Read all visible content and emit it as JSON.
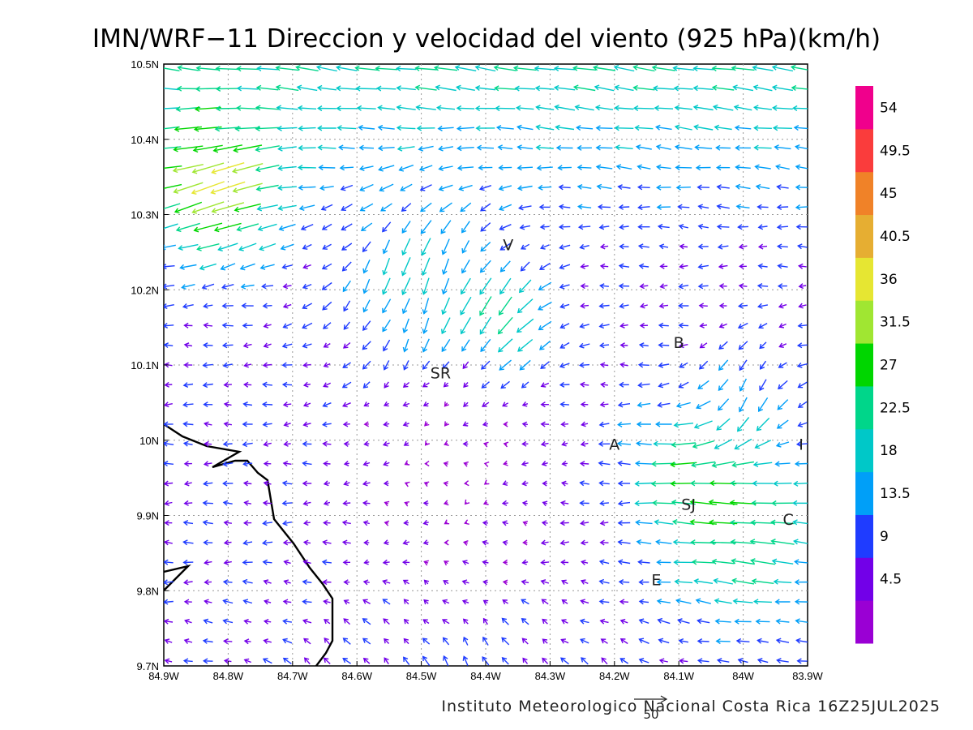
{
  "title": "IMN/WRF−11 Direccion y velocidad del viento (925 hPa)(km/h)",
  "footer": "Instituto Meteorologico Nacional Costa Rica 16Z25JUL2025",
  "reference_vector_label": "50",
  "chart_data": {
    "type": "vector-field",
    "x_range": [
      -84.9,
      -83.9
    ],
    "y_range": [
      9.7,
      10.5
    ],
    "x_ticks": [
      {
        "value": -84.9,
        "label": "84.9W"
      },
      {
        "value": -84.8,
        "label": "84.8W"
      },
      {
        "value": -84.7,
        "label": "84.7W"
      },
      {
        "value": -84.6,
        "label": "84.6W"
      },
      {
        "value": -84.5,
        "label": "84.5W"
      },
      {
        "value": -84.4,
        "label": "84.4W"
      },
      {
        "value": -84.3,
        "label": "84.3W"
      },
      {
        "value": -84.2,
        "label": "84.2W"
      },
      {
        "value": -84.1,
        "label": "84.1W"
      },
      {
        "value": -84.0,
        "label": "84W"
      },
      {
        "value": -83.9,
        "label": "83.9W"
      }
    ],
    "y_ticks": [
      {
        "value": 9.7,
        "label": "9.7N"
      },
      {
        "value": 9.8,
        "label": "9.8N"
      },
      {
        "value": 9.9,
        "label": "9.9N"
      },
      {
        "value": 10.0,
        "label": "10N"
      },
      {
        "value": 10.1,
        "label": "10.1N"
      },
      {
        "value": 10.2,
        "label": "10.2N"
      },
      {
        "value": 10.3,
        "label": "10.3N"
      },
      {
        "value": 10.4,
        "label": "10.4N"
      },
      {
        "value": 10.5,
        "label": "10.5N"
      }
    ],
    "grid": true,
    "colorbar": {
      "labels": [
        "4.5",
        "9",
        "13.5",
        "18",
        "22.5",
        "27",
        "31.5",
        "36",
        "40.5",
        "45",
        "49.5",
        "54"
      ],
      "colors": [
        "#9a00d4",
        "#7200e8",
        "#1f3cff",
        "#009ff8",
        "#00c8c8",
        "#00d68a",
        "#00d600",
        "#a0e632",
        "#e6e632",
        "#e6ae32",
        "#f08228",
        "#fa3c3c",
        "#f0008c"
      ]
    },
    "places": [
      {
        "label": "V",
        "lon": -84.365,
        "lat": 10.26
      },
      {
        "label": "SR",
        "lon": -84.47,
        "lat": 10.09
      },
      {
        "label": "B",
        "lon": -84.1,
        "lat": 10.13
      },
      {
        "label": "A",
        "lon": -84.2,
        "lat": 9.995
      },
      {
        "label": "I",
        "lon": -83.91,
        "lat": 9.995
      },
      {
        "label": "SJ",
        "lon": -84.085,
        "lat": 9.915
      },
      {
        "label": "C",
        "lon": -83.93,
        "lat": 9.895
      },
      {
        "label": "E",
        "lon": -84.135,
        "lat": 9.815
      }
    ]
  }
}
